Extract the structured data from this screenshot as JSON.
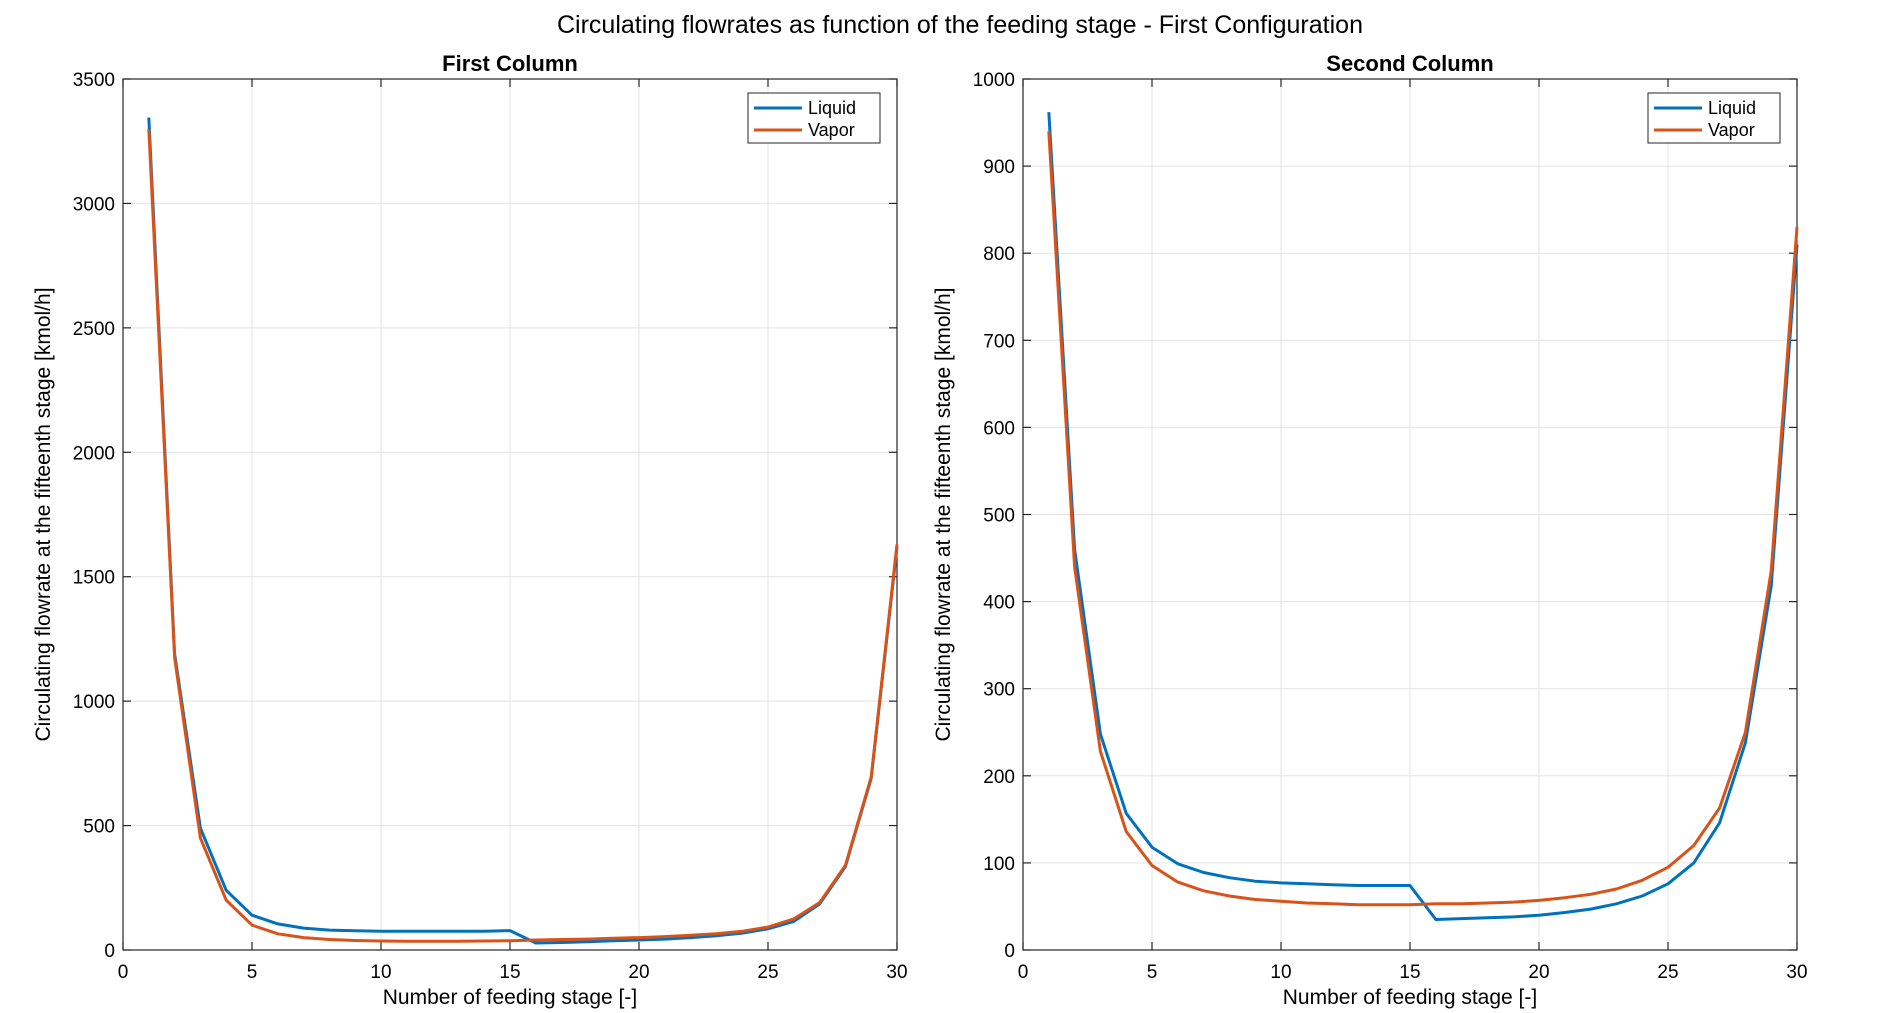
{
  "figure": {
    "suptitle": "Circulating flowrates as function of the feeding stage - First Configuration"
  },
  "colors": {
    "liquid": "#0072BD",
    "vapor": "#D95319",
    "grid": "#e3e3e3",
    "axis": "#262626"
  },
  "chart_data": [
    {
      "type": "line",
      "title": "First Column",
      "xlabel": "Number of feeding stage [-]",
      "ylabel": "Circulating flowrate at the fifteenth stage [kmol/h]",
      "xlim": [
        0,
        30
      ],
      "ylim": [
        0,
        3500
      ],
      "xticks": [
        0,
        5,
        10,
        15,
        20,
        25,
        30
      ],
      "yticks": [
        0,
        500,
        1000,
        1500,
        2000,
        2500,
        3000,
        3500
      ],
      "grid": true,
      "legend": "top-right",
      "x": [
        1,
        2,
        3,
        4,
        5,
        6,
        7,
        8,
        9,
        10,
        11,
        12,
        13,
        14,
        15,
        16,
        17,
        18,
        19,
        20,
        21,
        22,
        23,
        24,
        25,
        26,
        27,
        28,
        29,
        30
      ],
      "series": [
        {
          "name": "Liquid",
          "values": [
            3345,
            1190,
            490,
            240,
            140,
            105,
            88,
            80,
            77,
            75,
            75,
            75,
            75,
            75,
            78,
            28,
            30,
            33,
            37,
            40,
            44,
            50,
            57,
            68,
            85,
            115,
            185,
            335,
            690,
            1620
          ]
        },
        {
          "name": "Vapor",
          "values": [
            3300,
            1175,
            450,
            200,
            100,
            65,
            50,
            42,
            38,
            36,
            35,
            35,
            35,
            36,
            37,
            40,
            42,
            44,
            47,
            50,
            54,
            59,
            65,
            75,
            92,
            125,
            190,
            340,
            695,
            1630
          ]
        }
      ]
    },
    {
      "type": "line",
      "title": "Second Column",
      "xlabel": "Number of feeding stage [-]",
      "ylabel": "Circulating flowrate at the fifteenth stage [kmol/h]",
      "xlim": [
        0,
        30
      ],
      "ylim": [
        0,
        1000
      ],
      "xticks": [
        0,
        5,
        10,
        15,
        20,
        25,
        30
      ],
      "yticks": [
        0,
        100,
        200,
        300,
        400,
        500,
        600,
        700,
        800,
        900,
        1000
      ],
      "grid": true,
      "legend": "top-right",
      "x": [
        1,
        2,
        3,
        4,
        5,
        6,
        7,
        8,
        9,
        10,
        11,
        12,
        13,
        14,
        15,
        16,
        17,
        18,
        19,
        20,
        21,
        22,
        23,
        24,
        25,
        26,
        27,
        28,
        29,
        30
      ],
      "series": [
        {
          "name": "Liquid",
          "values": [
            962,
            460,
            248,
            157,
            118,
            99,
            89,
            83,
            79,
            77,
            76,
            75,
            74,
            74,
            74,
            35,
            36,
            37,
            38,
            40,
            43,
            47,
            53,
            62,
            76,
            100,
            146,
            238,
            418,
            810
          ]
        },
        {
          "name": "Vapor",
          "values": [
            940,
            440,
            228,
            136,
            97,
            78,
            68,
            62,
            58,
            56,
            54,
            53,
            52,
            52,
            52,
            53,
            53,
            54,
            55,
            57,
            60,
            64,
            70,
            80,
            95,
            120,
            163,
            250,
            435,
            830
          ]
        }
      ]
    }
  ]
}
